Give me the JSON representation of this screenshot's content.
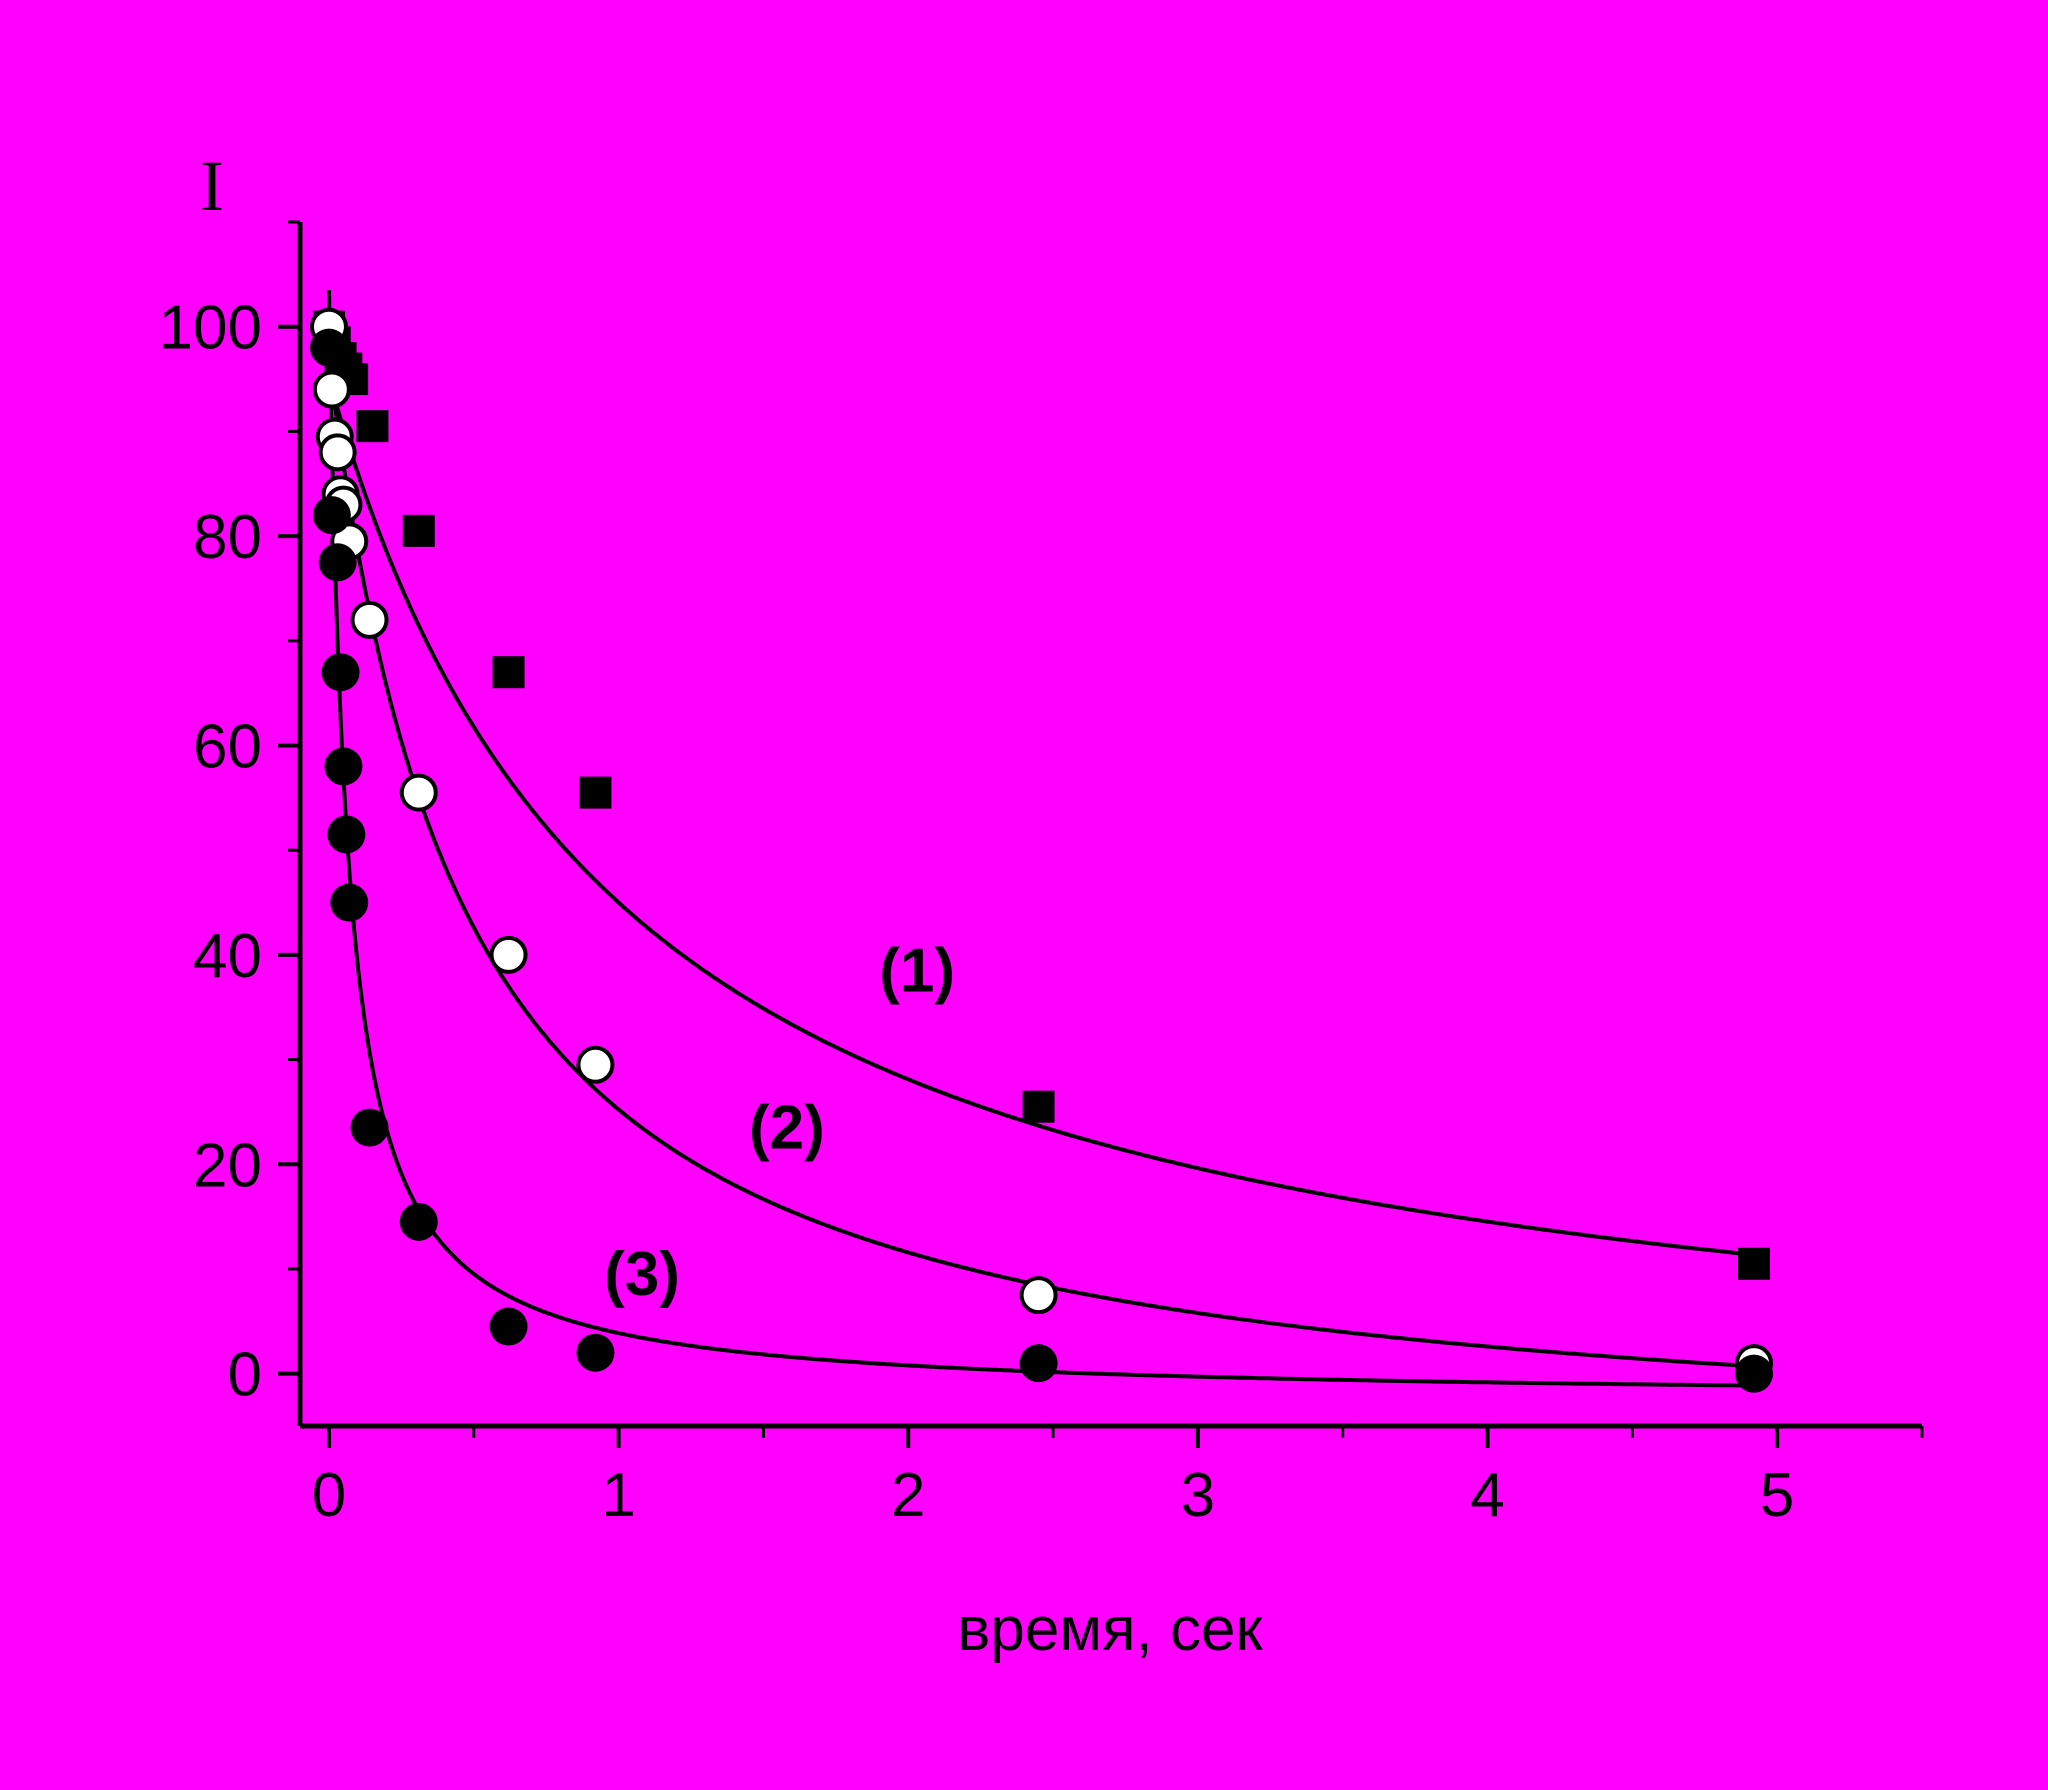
{
  "chart_data": {
    "type": "scatter",
    "title": "",
    "xlabel": "время, сек",
    "ylabel": "I",
    "xlim": [
      -0.1,
      5.5
    ],
    "ylim": [
      -5,
      110
    ],
    "xticks": [
      0,
      1,
      2,
      3,
      4,
      5
    ],
    "yticks": [
      0,
      20,
      40,
      60,
      80,
      100
    ],
    "grid": false,
    "legend": "none",
    "background": "#ff00ff",
    "series": [
      {
        "label": "(1)",
        "marker": "filled-square",
        "points": [
          [
            0,
            100
          ],
          [
            0.02,
            98.5
          ],
          [
            0.04,
            97
          ],
          [
            0.06,
            96
          ],
          [
            0.08,
            95
          ],
          [
            0.15,
            90.5
          ],
          [
            0.31,
            80.5
          ],
          [
            0.62,
            67
          ],
          [
            0.92,
            55.5
          ],
          [
            2.45,
            25.5
          ],
          [
            4.92,
            10.5
          ]
        ],
        "curve": {
          "model": "a/(1+t/b)+c",
          "a": 101,
          "b": 1.02,
          "c": -6
        }
      },
      {
        "label": "(2)",
        "marker": "open-circle",
        "points": [
          [
            0,
            100
          ],
          [
            0.01,
            94
          ],
          [
            0.02,
            89.5
          ],
          [
            0.03,
            88
          ],
          [
            0.04,
            84
          ],
          [
            0.05,
            83
          ],
          [
            0.07,
            79.5
          ],
          [
            0.14,
            72
          ],
          [
            0.31,
            55.5
          ],
          [
            0.62,
            40
          ],
          [
            0.92,
            29.5
          ],
          [
            2.45,
            7.5
          ],
          [
            4.92,
            1
          ]
        ],
        "curve": {
          "model": "a/(1+t/b)+c",
          "a": 105.5,
          "b": 0.47,
          "c": -8.5
        }
      },
      {
        "label": "(3)",
        "marker": "filled-circle",
        "points": [
          [
            0,
            98
          ],
          [
            0.01,
            82
          ],
          [
            0.03,
            77.5
          ],
          [
            0.04,
            67
          ],
          [
            0.05,
            58
          ],
          [
            0.06,
            51.5
          ],
          [
            0.07,
            45
          ],
          [
            0.14,
            23.5
          ],
          [
            0.31,
            14.5
          ],
          [
            0.62,
            4.5
          ],
          [
            0.92,
            2
          ],
          [
            2.45,
            1
          ],
          [
            4.92,
            0
          ]
        ],
        "curve": {
          "model": "a/(1+t/b)+c",
          "a": 106,
          "b": 0.064,
          "c": -2.5
        }
      }
    ]
  }
}
